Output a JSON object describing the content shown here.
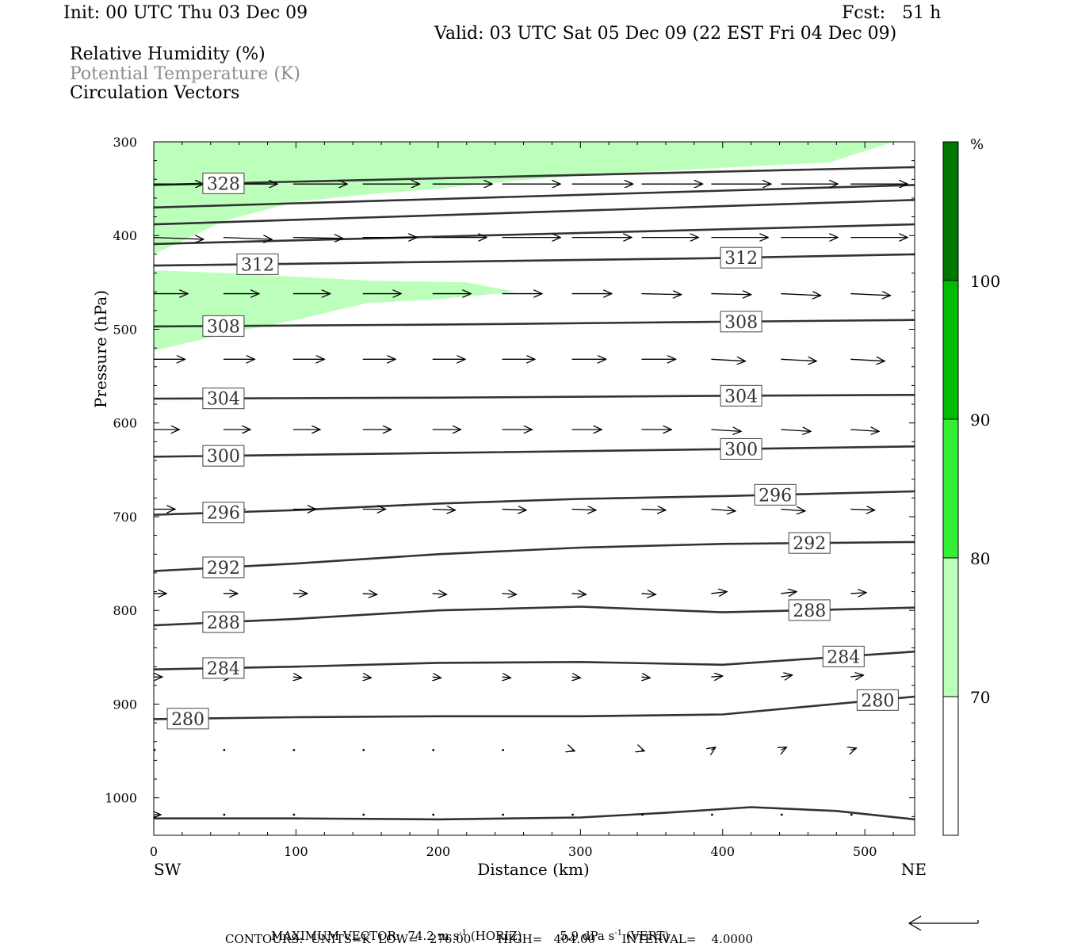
{
  "header": {
    "init": "Init: 00 UTC Thu 03 Dec 09",
    "fcst": "Fcst:   51 h",
    "valid": "Valid: 03 UTC Sat 05 Dec 09 (22 EST Fri 04 Dec 09)"
  },
  "legend": {
    "rh": "Relative Humidity (%)",
    "theta": "Potential Temperature (K)",
    "vectors": "Circulation Vectors"
  },
  "footer": {
    "max_label": "MAXIMUM VECTOR:",
    "horiz_val": "74.2",
    "units_m": "m s",
    "exp": "-1",
    "horiz_tag": "(HORIZ)",
    "vert_val": "5.9",
    "units_dpa": "dPa s",
    "vert_tag": "(VERT)",
    "contours": "CONTOURS:  UNITS=K  LOW=   276.00       HIGH=   404.00       INTERVAL=    4.0000"
  },
  "colors": {
    "rh_70_80": "#bbffbb",
    "rh_80_90": "#33ee33",
    "rh_90_100": "#00bb00",
    "rh_100_plus": "#007700",
    "contour": "#333333",
    "vector": "#000000"
  },
  "chart_data": {
    "type": "cross-section",
    "xlabel": "Distance (km)",
    "ylabel": "Pressure (hPa)",
    "xlim": [
      0,
      535
    ],
    "ylim": [
      300,
      1040
    ],
    "y_scale": "linear, inverted",
    "xticks": [
      0,
      100,
      200,
      300,
      400,
      500
    ],
    "yticks": [
      300,
      400,
      500,
      600,
      700,
      800,
      900,
      1000
    ],
    "x_end_labels": {
      "left": "SW",
      "right": "NE"
    },
    "colorbar": {
      "unit": "%",
      "levels": [
        70,
        80,
        90,
        100
      ]
    },
    "rh_over_70_regions": [
      {
        "x": [
          0,
          25,
          60,
          110,
          200,
          300,
          360,
          420,
          475,
          500,
          520,
          535,
          535,
          520,
          475,
          420,
          360,
          300,
          250,
          200,
          150,
          100,
          50,
          0
        ],
        "p": [
          300,
          300,
          300,
          300,
          300,
          300,
          300,
          300,
          300,
          300,
          300,
          300,
          300,
          300,
          322,
          326,
          331,
          336,
          342,
          350,
          356,
          364,
          384,
          420
        ]
      },
      {
        "x": [
          0,
          50,
          100,
          150,
          220,
          255,
          200,
          150,
          100,
          50,
          0
        ],
        "p": [
          437,
          440,
          444,
          448,
          450,
          460,
          468,
          472,
          490,
          505,
          523
        ]
      }
    ],
    "theta_contours": [
      {
        "level": 328,
        "x": [
          0,
          535
        ],
        "p": [
          346,
          327
        ],
        "label": "328",
        "label_x": [
          49
        ]
      },
      {
        "level": 324,
        "x": [
          0,
          535
        ],
        "p": [
          370,
          346
        ]
      },
      {
        "level": 320,
        "x": [
          0,
          535
        ],
        "p": [
          388,
          362
        ]
      },
      {
        "level": 316,
        "x": [
          0,
          535
        ],
        "p": [
          409,
          388
        ]
      },
      {
        "level": 312,
        "x": [
          0,
          200,
          400,
          535
        ],
        "p": [
          432,
          428,
          424,
          420
        ],
        "label": "312",
        "label_x": [
          73,
          413
        ]
      },
      {
        "level": 308,
        "x": [
          0,
          200,
          400,
          535
        ],
        "p": [
          497,
          495,
          492,
          490
        ],
        "label": "308",
        "label_x": [
          49,
          413
        ]
      },
      {
        "level": 304,
        "x": [
          0,
          200,
          400,
          535
        ],
        "p": [
          574,
          573,
          571,
          570
        ],
        "label": "304",
        "label_x": [
          49,
          413
        ]
      },
      {
        "level": 300,
        "x": [
          0,
          200,
          400,
          535
        ],
        "p": [
          636,
          632,
          628,
          625
        ],
        "label": "300",
        "label_x": [
          49,
          413
        ]
      },
      {
        "level": 296,
        "x": [
          0,
          100,
          200,
          300,
          400,
          535
        ],
        "p": [
          698,
          693,
          686,
          681,
          678,
          673
        ],
        "label": "296",
        "label_x": [
          49,
          437
        ]
      },
      {
        "level": 292,
        "x": [
          0,
          100,
          200,
          300,
          400,
          535
        ],
        "p": [
          758,
          750,
          740,
          733,
          729,
          727
        ],
        "label": "292",
        "label_x": [
          49,
          461
        ]
      },
      {
        "level": 288,
        "x": [
          0,
          100,
          200,
          300,
          400,
          535
        ],
        "p": [
          816,
          809,
          800,
          796,
          802,
          797
        ],
        "label": "288",
        "label_x": [
          49,
          461
        ]
      },
      {
        "level": 284,
        "x": [
          0,
          100,
          200,
          300,
          400,
          535
        ],
        "p": [
          863,
          860,
          856,
          855,
          858,
          844
        ],
        "label": "284",
        "label_x": [
          49,
          485
        ]
      },
      {
        "level": 280,
        "x": [
          0,
          100,
          200,
          300,
          400,
          535
        ],
        "p": [
          916,
          914,
          913,
          913,
          911,
          892
        ],
        "label": "280",
        "label_x": [
          24,
          509
        ]
      },
      {
        "level": 276,
        "x": [
          0,
          100,
          200,
          300,
          360,
          420,
          480,
          535
        ],
        "p": [
          1022,
          1022,
          1023,
          1021,
          1016,
          1010,
          1014,
          1023
        ]
      }
    ],
    "vector_rows": [
      {
        "p": 345,
        "x": [
          0,
          49,
          98,
          147,
          196,
          245,
          294,
          343,
          392,
          441,
          490
        ],
        "dx_km": [
          35,
          38,
          38,
          40,
          42,
          41,
          43,
          43,
          42,
          40,
          40
        ],
        "dp": [
          0,
          0,
          0,
          0,
          0,
          0,
          0,
          0,
          0,
          0,
          0
        ]
      },
      {
        "p": 402,
        "x": [
          0,
          49,
          98,
          147,
          196,
          245,
          294,
          343,
          392,
          441,
          490
        ],
        "dx_km": [
          35,
          34,
          35,
          38,
          38,
          41,
          42,
          40,
          40,
          40,
          40
        ],
        "dp": [
          2,
          2,
          1,
          0,
          0,
          0,
          0,
          0,
          0,
          0,
          0
        ]
      },
      {
        "p": 462,
        "x": [
          0,
          49,
          98,
          147,
          196,
          245,
          294,
          343,
          392,
          441,
          490
        ],
        "dx_km": [
          24,
          25,
          26,
          27,
          27,
          28,
          28,
          28,
          28,
          28,
          28
        ],
        "dp": [
          0,
          0,
          0,
          0,
          0,
          0,
          0,
          1,
          1,
          2,
          2
        ]
      },
      {
        "p": 532,
        "x": [
          0,
          49,
          98,
          147,
          196,
          245,
          294,
          343,
          392,
          441,
          490
        ],
        "dx_km": [
          22,
          22,
          22,
          23,
          23,
          23,
          24,
          24,
          24,
          25,
          24
        ],
        "dp": [
          0,
          0,
          0,
          0,
          0,
          0,
          0,
          0,
          2,
          2,
          2
        ]
      },
      {
        "p": 607,
        "x": [
          0,
          49,
          98,
          147,
          196,
          245,
          294,
          343,
          392,
          441,
          490
        ],
        "dx_km": [
          18,
          19,
          19,
          20,
          20,
          21,
          21,
          21,
          21,
          21,
          20
        ],
        "dp": [
          0,
          0,
          0,
          0,
          0,
          0,
          0,
          0,
          2,
          2,
          2
        ]
      },
      {
        "p": 692,
        "x": [
          0,
          49,
          98,
          147,
          196,
          245,
          294,
          343,
          392,
          441,
          490
        ],
        "dx_km": [
          15,
          15,
          16,
          16,
          16,
          17,
          17,
          17,
          17,
          17,
          17
        ],
        "dp": [
          0,
          0,
          0,
          0,
          1,
          1,
          1,
          1,
          2,
          2,
          1
        ]
      },
      {
        "p": 782,
        "x": [
          0,
          49,
          98,
          147,
          196,
          245,
          294,
          343,
          392,
          441,
          490
        ],
        "dx_km": [
          9,
          10,
          10,
          10,
          10,
          10,
          10,
          10,
          11,
          11,
          11
        ],
        "dp": [
          0,
          0,
          0,
          1,
          1,
          1,
          1,
          1,
          -2,
          -2,
          -1
        ]
      },
      {
        "p": 871,
        "x": [
          0,
          49,
          98,
          147,
          196,
          245,
          294,
          343,
          392,
          441,
          490
        ],
        "dx_km": [
          6,
          6,
          6,
          6,
          6,
          6,
          6,
          6,
          8,
          8,
          9
        ],
        "dp": [
          0,
          0,
          1,
          1,
          1,
          1,
          1,
          1,
          -1,
          -2,
          -2
        ]
      },
      {
        "p": 949,
        "x": [
          0,
          49,
          98,
          147,
          196,
          245,
          294,
          343,
          392,
          441,
          490
        ],
        "dx_km": [
          0,
          0,
          0,
          1,
          1,
          1,
          2,
          2,
          3,
          4,
          4
        ],
        "dp": [
          0,
          0,
          0,
          1,
          1,
          1,
          1,
          1,
          -3,
          -3,
          -2
        ]
      },
      {
        "p": 1018,
        "x": [
          0,
          49,
          98,
          147,
          196,
          245,
          294,
          343,
          392,
          441,
          490
        ],
        "dx_km": [
          5,
          0,
          0,
          0,
          0,
          0,
          0,
          0,
          0,
          0,
          0
        ],
        "dp": [
          0,
          0,
          0,
          0,
          0,
          0,
          0,
          0,
          0,
          0,
          0
        ]
      }
    ]
  }
}
